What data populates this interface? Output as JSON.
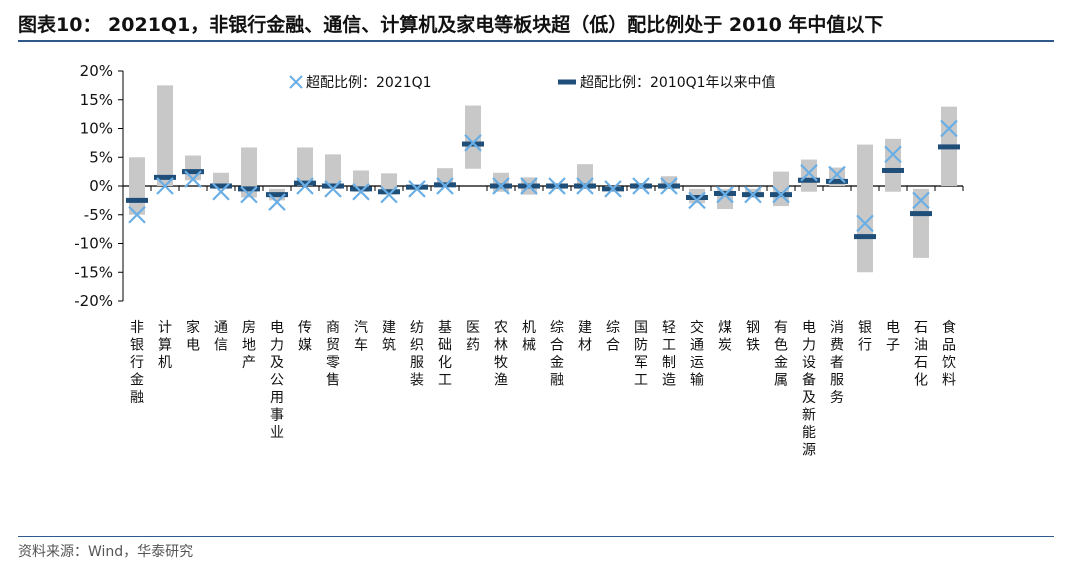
{
  "header": {
    "title": "图表10：  2021Q1，非银行金融、通信、计算机及家电等板块超（低）配比例处于 2010 年中值以下"
  },
  "footer": {
    "source": "资料来源：Wind，华泰研究"
  },
  "colors": {
    "range_bar": "#c8c8c8",
    "cross": "#6aaee6",
    "median": "#1f4e79",
    "rule": "#2d5a8a"
  },
  "chart_data": {
    "type": "bar",
    "ylim": [
      -20,
      20
    ],
    "yticks": [
      20,
      15,
      10,
      5,
      0,
      -5,
      -10,
      -15,
      -20
    ],
    "ytick_labels": [
      "20%",
      "15%",
      "10%",
      "5%",
      "0%",
      "-5%",
      "-10%",
      "-15%",
      "-20%"
    ],
    "legend": {
      "placement": "top",
      "cross_label": "超配比例：2021Q1",
      "median_label": "超配比例：2010Q1年以来中值"
    },
    "categories": [
      "非银行金融",
      "计算机",
      "家电",
      "通信",
      "房地产",
      "电力及公用事业",
      "传媒",
      "商贸零售",
      "汽车",
      "建筑",
      "纺织服装",
      "基础化工",
      "医药",
      "农林牧渔",
      "机械",
      "综合金融",
      "建材",
      "综合",
      "国防军工",
      "轻工制造",
      "交通运输",
      "煤炭",
      "钢铁",
      "有色金属",
      "电力设备及新能源",
      "消费者服务",
      "银行",
      "电子",
      "石油石化",
      "食品饮料"
    ],
    "series": [
      {
        "name": "range",
        "low": [
          -5,
          0,
          1,
          -0.5,
          -2,
          -2.5,
          0,
          -0.5,
          -1,
          -1.5,
          -0.5,
          0,
          3,
          -1,
          -1.5,
          -0.5,
          -0.5,
          -0.5,
          -0.5,
          -0.5,
          -3,
          -4,
          -2,
          -3.5,
          -1,
          0,
          -15,
          -1,
          -12.5,
          0
        ],
        "high": [
          5,
          17.5,
          5.3,
          2.3,
          6.7,
          -0.5,
          6.7,
          5.5,
          2.7,
          2.2,
          0,
          3.1,
          14,
          2.3,
          1.5,
          0.2,
          3.8,
          0,
          0.5,
          1.7,
          -0.5,
          -0.5,
          -0.5,
          2.5,
          4.6,
          3.2,
          7.2,
          8.2,
          -0.5,
          13.8
        ]
      },
      {
        "name": "超配比例：2021Q1",
        "values": [
          -5,
          0,
          1.2,
          -1,
          -1.5,
          -2.8,
          0,
          -0.5,
          -1,
          -1.5,
          -0.5,
          0,
          7.5,
          0,
          0,
          0,
          0,
          -0.5,
          0,
          0,
          -2.5,
          -1.5,
          -1.5,
          -1.5,
          2.3,
          2,
          -6.5,
          5.5,
          -2.5,
          10
        ]
      },
      {
        "name": "超配比例：2010Q1年以来中值",
        "values": [
          -2.5,
          1.5,
          2.5,
          0,
          -0.5,
          -1.5,
          0.5,
          0,
          -0.5,
          -1,
          -0.2,
          0.2,
          7.3,
          0,
          0,
          0,
          0,
          -0.5,
          0,
          0,
          -2,
          -1.3,
          -1.5,
          -1.5,
          1,
          0.8,
          -8.8,
          2.7,
          -4.8,
          6.8
        ]
      }
    ]
  }
}
